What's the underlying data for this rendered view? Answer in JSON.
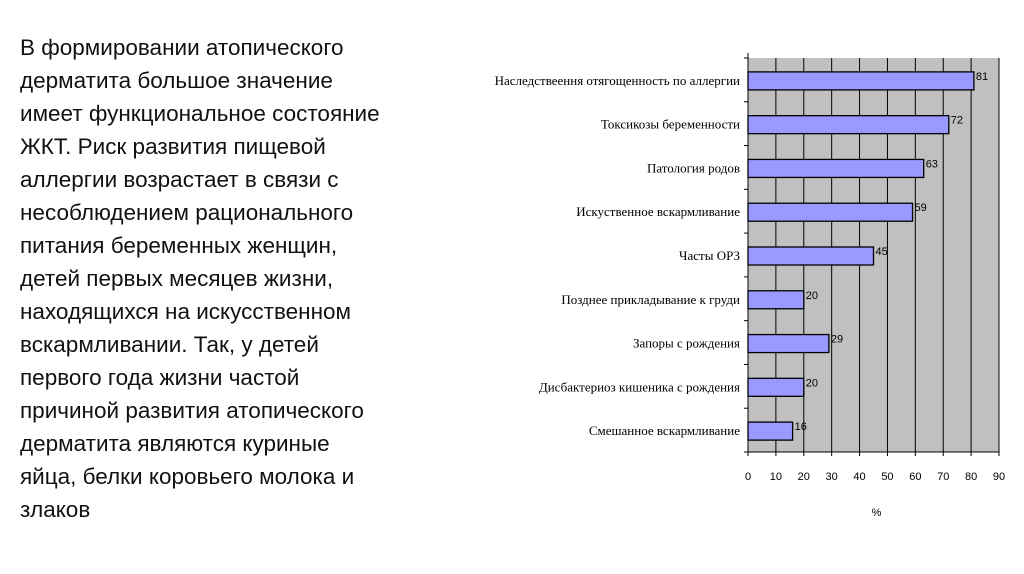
{
  "slide": {
    "text": "В формировании атопического\nдерматита большое значение\nимеет функциональное состояние\nЖКТ. Риск развития пищевой\nаллергии возрастает в связи с\nнесоблюдением рационального\nпитания беременных женщин,\nдетей первых месяцев жизни,\nнаходящихся на искусственном\nвскармливании. Так, у детей\nпервого года жизни частой\nпричиной развития атопического\nдерматита являются куриные\nяйца, белки коровьего молока и\nзлаков"
  },
  "chart_data": {
    "type": "bar",
    "orientation": "horizontal",
    "categories": [
      "Наследствеення отягощенность по аллергии",
      "Токсикозы беременности",
      "Патология родов",
      "Искуственное вскармливание",
      "Часты ОРЗ",
      "Позднее прикладывание к груди",
      "Запоры с рождения",
      "Дисбактериоз кишеника с рождения",
      "Смешанное вскармливание"
    ],
    "values": [
      81,
      72,
      63,
      59,
      45,
      20,
      29,
      20,
      16
    ],
    "data_labels": [
      "81",
      "72",
      "63",
      "59",
      "45",
      "20",
      "29",
      "20",
      "16"
    ],
    "xlabel": "%",
    "xlim": [
      0,
      90
    ],
    "xticks": [
      "0",
      "10",
      "20",
      "30",
      "40",
      "50",
      "60",
      "70",
      "80",
      "90"
    ],
    "grid": true,
    "legend": "none",
    "colors": {
      "bar": "#9999ff",
      "plot_background": "#c0c0c0",
      "gridline": "#000000"
    }
  }
}
